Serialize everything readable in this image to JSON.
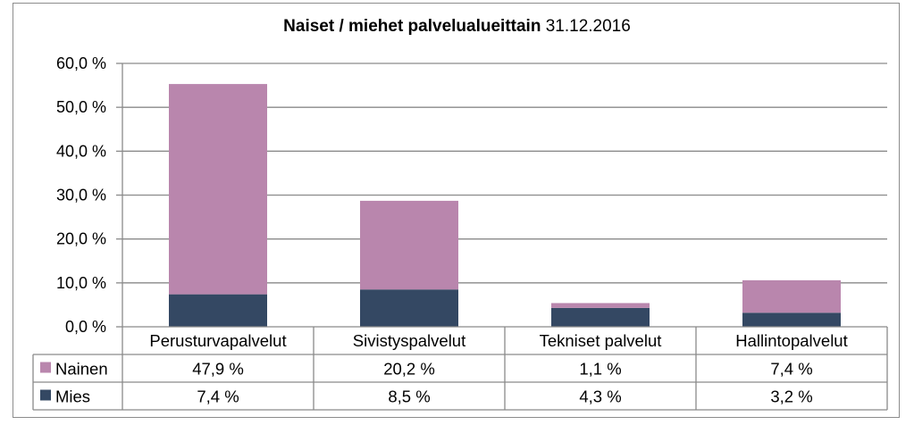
{
  "chart_data": {
    "type": "bar",
    "stacked": true,
    "title_bold": "Naiset / miehet palvelualueittain",
    "title_date": "31.12.2016",
    "categories": [
      "Perusturvapalvelut",
      "Sivistyspalvelut",
      "Tekniset palvelut",
      "Hallintopalvelut"
    ],
    "series": [
      {
        "name": "Mies",
        "values": [
          7.4,
          8.5,
          4.3,
          3.2
        ],
        "labels": [
          "7,4 %",
          "8,5 %",
          "4,3 %",
          "3,2 %"
        ],
        "color": "#344863"
      },
      {
        "name": "Nainen",
        "values": [
          47.9,
          20.2,
          1.1,
          7.4
        ],
        "labels": [
          "47,9 %",
          "20,2 %",
          "1,1 %",
          "7,4 %"
        ],
        "color": "#b986ad"
      }
    ],
    "table_order": [
      "Nainen",
      "Mies"
    ],
    "ylim": [
      0,
      60
    ],
    "yticks": [
      "0,0 %",
      "10,0 %",
      "20,0 %",
      "30,0 %",
      "40,0 %",
      "50,0 %",
      "60,0 %"
    ],
    "grid": true,
    "legend": "data-table"
  }
}
